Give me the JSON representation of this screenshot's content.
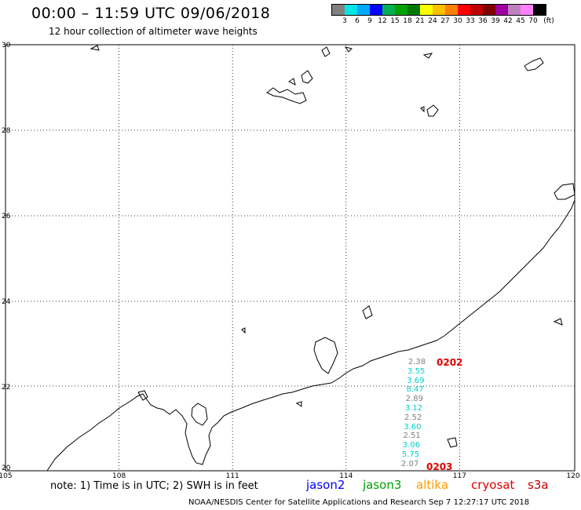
{
  "header": {
    "title": "00:00 – 11:59 UTC 09/06/2018",
    "subtitle": "12 hour collection of altimeter wave heights"
  },
  "scale": {
    "colors": [
      "#808080",
      "#00e5e5",
      "#00a8ff",
      "#0000ff",
      "#00b050",
      "#00a000",
      "#007800",
      "#ffff00",
      "#ffc000",
      "#ff8000",
      "#ff0000",
      "#c00000",
      "#800000",
      "#a000a0",
      "#c080c0",
      "#ff80ff",
      "#000000"
    ],
    "labels": [
      "3",
      "6",
      "9",
      "12",
      "15",
      "18",
      "21",
      "24",
      "27",
      "30",
      "33",
      "36",
      "39",
      "42",
      "45",
      "70",
      "(ft)"
    ]
  },
  "map": {
    "lat_labels": [
      "30",
      "28",
      "26",
      "24",
      "22",
      "20"
    ],
    "lon_labels": [
      "105",
      "108",
      "111",
      "114",
      "117",
      "120"
    ],
    "observations": [
      {
        "value": "2.38",
        "color": "#808080"
      },
      {
        "value": "3.55",
        "color": "#00d0d0"
      },
      {
        "value": "3.69",
        "color": "#00d0d0"
      },
      {
        "value": "8.47",
        "color": "#00d0d0"
      },
      {
        "value": "2.89",
        "color": "#808080"
      },
      {
        "value": "3.12",
        "color": "#00d0d0"
      },
      {
        "value": "2.52",
        "color": "#808080"
      },
      {
        "value": "3.60",
        "color": "#00d0d0"
      },
      {
        "value": "2.51",
        "color": "#808080"
      },
      {
        "value": "3.06",
        "color": "#00d0d0"
      },
      {
        "value": "5.75",
        "color": "#00d0d0"
      },
      {
        "value": "2.07",
        "color": "#808080"
      }
    ],
    "pass_start": "0202",
    "pass_end": "0203"
  },
  "legend": {
    "note": "note: 1) Time is in UTC; 2) SWH is in feet",
    "satellites": [
      {
        "name": "jason2",
        "color": "#0000ff"
      },
      {
        "name": "jason3",
        "color": "#00a000"
      },
      {
        "name": "altika",
        "color": "#ff9900"
      },
      {
        "name": "cryosat",
        "color": "#e00000"
      },
      {
        "name": "s3a",
        "color": "#c00000"
      }
    ]
  },
  "footer": "NOAA/NESDIS Center for Satellite Applications and Research   Sep  7 12:27:17 UTC 2018"
}
